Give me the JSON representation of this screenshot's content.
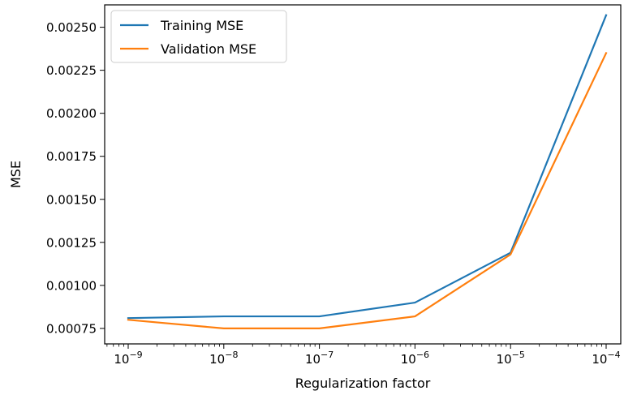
{
  "chart_data": {
    "type": "line",
    "xscale": "log",
    "x": [
      1e-09,
      1e-08,
      1e-07,
      1e-06,
      1e-05,
      0.0001
    ],
    "xticks": [
      {
        "base": "10",
        "exp": "−9"
      },
      {
        "base": "10",
        "exp": "−8"
      },
      {
        "base": "10",
        "exp": "−7"
      },
      {
        "base": "10",
        "exp": "−6"
      },
      {
        "base": "10",
        "exp": "−5"
      },
      {
        "base": "10",
        "exp": "−4"
      }
    ],
    "yticks": [
      "0.00075",
      "0.00100",
      "0.00125",
      "0.00150",
      "0.00175",
      "0.00200",
      "0.00225",
      "0.00250"
    ],
    "ytick_values": [
      0.00075,
      0.001,
      0.00125,
      0.0015,
      0.00175,
      0.002,
      0.00225,
      0.0025
    ],
    "ylim": [
      0.00066,
      0.00263
    ],
    "xlabel": "Regularization factor",
    "ylabel": "MSE",
    "grid": false,
    "legend_position": "top-left",
    "series": [
      {
        "name": "Training MSE",
        "color": "#1f77b4",
        "values": [
          0.00081,
          0.00082,
          0.00082,
          0.0009,
          0.00119,
          0.00257
        ]
      },
      {
        "name": "Validation MSE",
        "color": "#ff7f0e",
        "values": [
          0.0008,
          0.00075,
          0.00075,
          0.00082,
          0.00118,
          0.00235
        ]
      }
    ]
  }
}
